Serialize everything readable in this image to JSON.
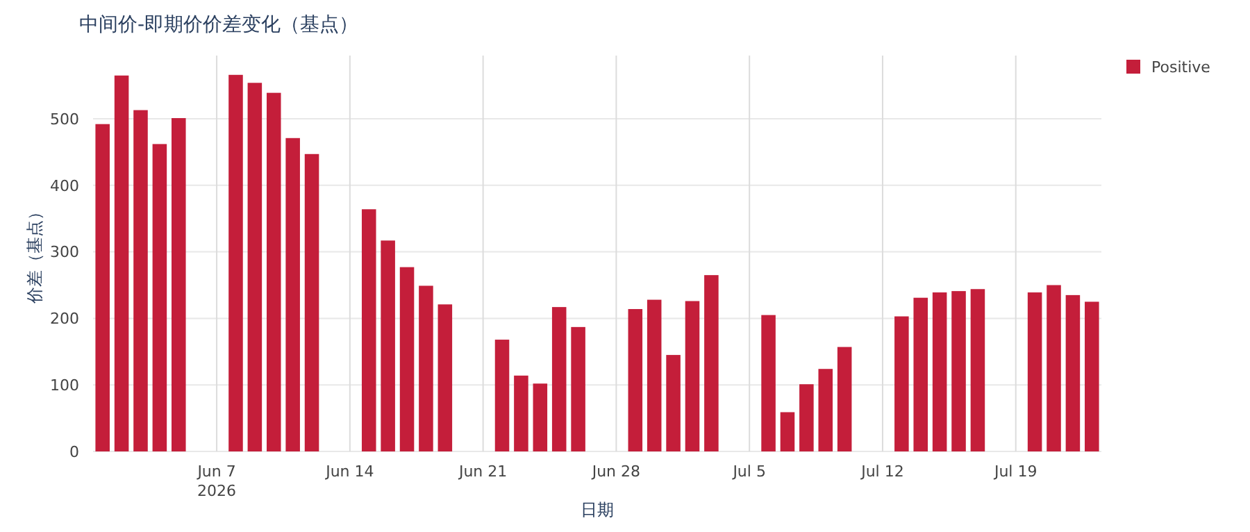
{
  "chart_data": {
    "type": "bar",
    "title": "中间价-即期价价差变化（基点）",
    "xlabel": "日期",
    "ylabel": "价差（基点）",
    "x": [
      "2026-06-01",
      "2026-06-02",
      "2026-06-03",
      "2026-06-04",
      "2026-06-05",
      "2026-06-08",
      "2026-06-09",
      "2026-06-10",
      "2026-06-11",
      "2026-06-12",
      "2026-06-15",
      "2026-06-16",
      "2026-06-17",
      "2026-06-18",
      "2026-06-19",
      "2026-06-22",
      "2026-06-23",
      "2026-06-24",
      "2026-06-25",
      "2026-06-26",
      "2026-06-29",
      "2026-06-30",
      "2026-07-01",
      "2026-07-02",
      "2026-07-03",
      "2026-07-06",
      "2026-07-07",
      "2026-07-08",
      "2026-07-09",
      "2026-07-10",
      "2026-07-13",
      "2026-07-14",
      "2026-07-15",
      "2026-07-16",
      "2026-07-17",
      "2026-07-20",
      "2026-07-21",
      "2026-07-22",
      "2026-07-23"
    ],
    "series": [
      {
        "name": "Positive",
        "color": "#c41e3a",
        "values": [
          492,
          565,
          513,
          462,
          501,
          566,
          554,
          539,
          471,
          447,
          364,
          317,
          277,
          249,
          221,
          168,
          114,
          102,
          217,
          187,
          214,
          228,
          145,
          226,
          265,
          205,
          59,
          101,
          124,
          157,
          203,
          231,
          239,
          241,
          244,
          239,
          250,
          235,
          225
        ]
      }
    ],
    "xlim": [
      "2026-05-31T12:00",
      "2026-07-23T12:00"
    ],
    "xticks": [
      {
        "value": "2026-06-07",
        "label": "Jun 7\n2026"
      },
      {
        "value": "2026-06-14",
        "label": "Jun 14"
      },
      {
        "value": "2026-06-21",
        "label": "Jun 21"
      },
      {
        "value": "2026-06-28",
        "label": "Jun 28"
      },
      {
        "value": "2026-07-05",
        "label": "Jul 5"
      },
      {
        "value": "2026-07-12",
        "label": "Jul 12"
      },
      {
        "value": "2026-07-19",
        "label": "Jul 19"
      }
    ],
    "ylim": [
      0,
      595
    ],
    "yticks": [
      0,
      100,
      200,
      300,
      400,
      500
    ],
    "grid": true,
    "legend": "top right"
  }
}
